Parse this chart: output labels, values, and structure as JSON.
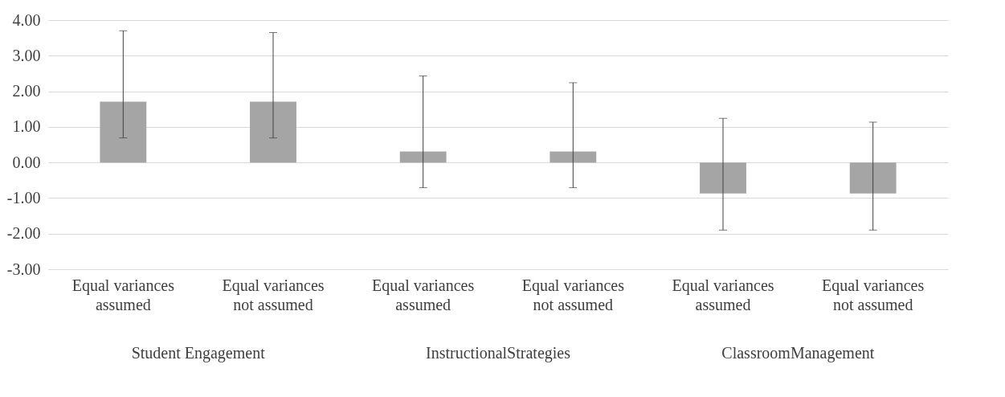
{
  "chart_data": {
    "type": "bar",
    "categories": [
      "Equal variances\nassumed",
      "Equal variances\nnot assumed",
      "Equal variances\nassumed",
      "Equal variances\nnot assumed",
      "Equal variances\nassumed",
      "Equal variances\nnot assumed"
    ],
    "values": [
      1.71,
      1.71,
      0.31,
      0.31,
      -0.87,
      -0.87
    ],
    "errors": [
      [
        0.69,
        3.7
      ],
      [
        0.69,
        3.65
      ],
      [
        -0.71,
        2.43
      ],
      [
        -0.71,
        2.24
      ],
      [
        -1.9,
        1.24
      ],
      [
        -1.9,
        1.13
      ]
    ],
    "color": "#a5a5a5",
    "ylim": [
      -3,
      4
    ],
    "yticks": [
      {
        "value": -3,
        "label": "-3.00"
      },
      {
        "value": -2,
        "label": "-2.00"
      },
      {
        "value": -1,
        "label": "-1.00"
      },
      {
        "value": 0,
        "label": "0.00"
      },
      {
        "value": 1,
        "label": "1.00"
      },
      {
        "value": 2,
        "label": "2.00"
      },
      {
        "value": 3,
        "label": "3.00"
      },
      {
        "value": 4,
        "label": "4.00"
      }
    ],
    "grid": "y",
    "annotations": [
      "Student Engagement",
      "InstructionalStrategies",
      "ClassroomManagement"
    ]
  }
}
